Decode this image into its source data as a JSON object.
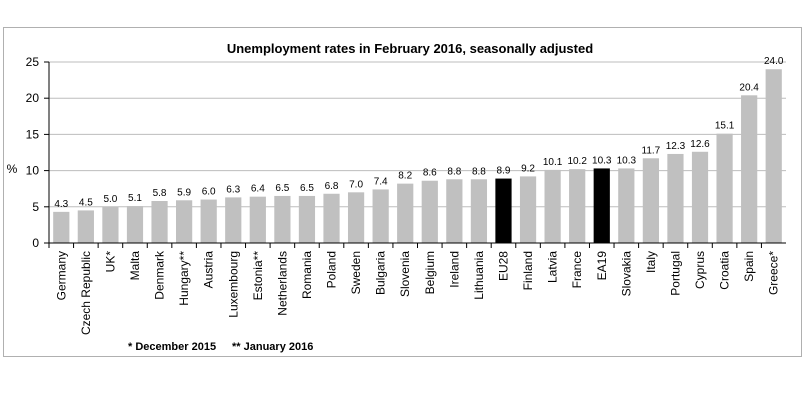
{
  "chart_data": {
    "type": "bar",
    "title": "Unemployment rates in February 2016, seasonally adjusted",
    "ylabel": "%",
    "xlabel": "",
    "ylim": [
      0,
      25
    ],
    "yticks": [
      0,
      5,
      10,
      15,
      20,
      25
    ],
    "grid": true,
    "categories": [
      "Germany",
      "Czech Republic",
      "UK*",
      "Malta",
      "Denmark",
      "Hungary**",
      "Austria",
      "Luxembourg",
      "Estonia**",
      "Netherlands",
      "Romania",
      "Poland",
      "Sweden",
      "Bulgaria",
      "Slovenia",
      "Belgium",
      "Ireland",
      "Lithuania",
      "EU28",
      "Finland",
      "Latvia",
      "France",
      "EA19",
      "Slovakia",
      "Italy",
      "Portugal",
      "Cyprus",
      "Croatia",
      "Spain",
      "Greece*"
    ],
    "values": [
      4.3,
      4.5,
      5.0,
      5.1,
      5.8,
      5.9,
      6.0,
      6.3,
      6.4,
      6.5,
      6.5,
      6.8,
      7.0,
      7.4,
      8.2,
      8.6,
      8.8,
      8.8,
      8.9,
      9.2,
      10.1,
      10.2,
      10.3,
      10.3,
      11.7,
      12.3,
      12.6,
      15.1,
      20.4,
      24.0
    ],
    "value_labels": [
      "4.3",
      "4.5",
      "5.0",
      "5.1",
      "5.8",
      "5.9",
      "6.0",
      "6.3",
      "6.4",
      "6.5",
      "6.5",
      "6.8",
      "7.0",
      "7.4",
      "8.2",
      "8.6",
      "8.8",
      "8.8",
      "8.9",
      "9.2",
      "10.1",
      "10.2",
      "10.3",
      "10.3",
      "11.7",
      "12.3",
      "12.6",
      "15.1",
      "20.4",
      "24.0"
    ],
    "highlighted": [
      "EU28",
      "EA19"
    ],
    "colors": {
      "bar": "#c0c0c0",
      "highlight": "#000000",
      "grid": "#bdbdbd",
      "axis": "#000000"
    },
    "footnotes": [
      "* December 2015",
      "** January 2016"
    ]
  }
}
